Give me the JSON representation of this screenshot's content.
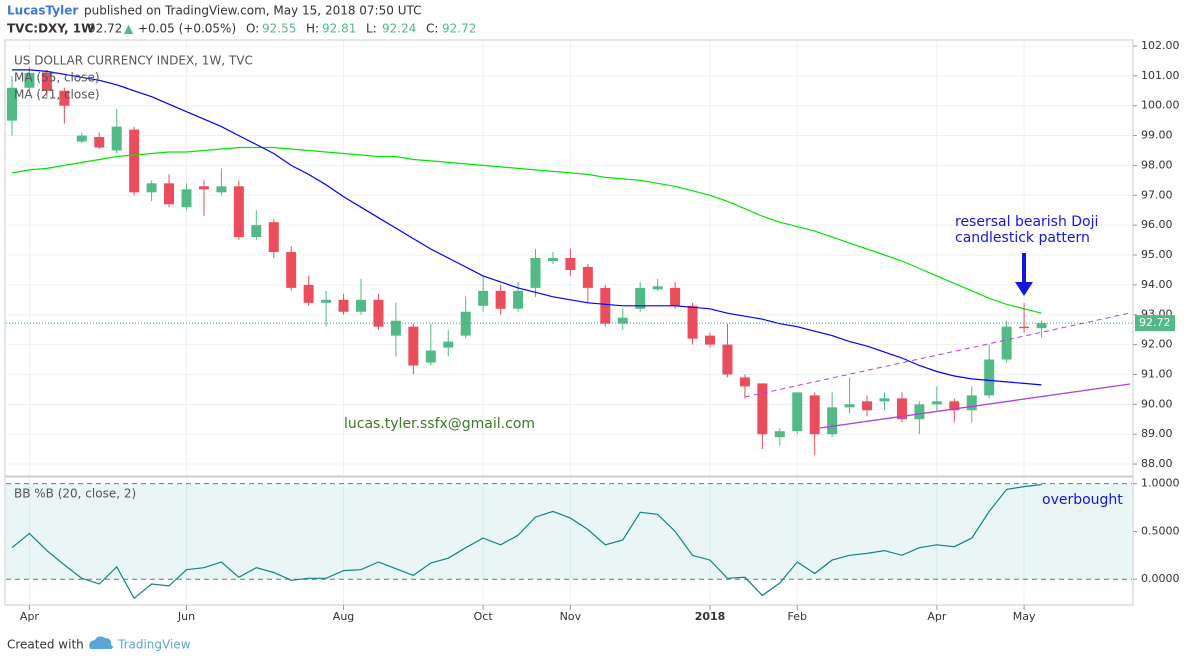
{
  "header": {
    "author": "LucasTyler",
    "published": "published on TradingView.com, May 15, 2018 07:50 UTC",
    "symbol": "TVC:DXY, 1W",
    "change_arrow": "▲",
    "change": "+0.05 (+0.05%)",
    "ohlc_labels": [
      "O:",
      "H:",
      "L:",
      "C:"
    ]
  },
  "chart_data": [
    {
      "type": "candlestick",
      "title": "US DOLLAR CURRENCY INDEX, 1W, TVC",
      "categories": [
        null,
        "Apr",
        null,
        null,
        null,
        null,
        null,
        null,
        null,
        null,
        "Jun",
        null,
        null,
        null,
        null,
        null,
        null,
        null,
        null,
        "Aug",
        null,
        null,
        null,
        null,
        null,
        null,
        null,
        "Oct",
        null,
        null,
        null,
        null,
        "Nov",
        null,
        null,
        null,
        null,
        null,
        null,
        null,
        "2018",
        null,
        null,
        null,
        null,
        "Feb",
        null,
        null,
        null,
        null,
        null,
        null,
        null,
        "Apr",
        null,
        null,
        null,
        null,
        "May",
        null
      ],
      "open": [
        99.5,
        100.6,
        101.1,
        100.5,
        98.8,
        98.95,
        98.5,
        99.2,
        97.1,
        97.4,
        96.6,
        97.3,
        97.1,
        97.3,
        95.6,
        96.1,
        95.1,
        94.0,
        93.4,
        93.5,
        93.1,
        93.5,
        92.3,
        92.6,
        91.4,
        91.9,
        92.3,
        93.3,
        93.8,
        93.2,
        93.9,
        94.8,
        94.9,
        94.6,
        93.9,
        92.7,
        93.2,
        93.85,
        93.9,
        93.3,
        92.3,
        92.0,
        90.9,
        90.7,
        88.9,
        89.1,
        90.3,
        89.0,
        89.9,
        90.1,
        90.1,
        90.2,
        89.5,
        90.0,
        90.1,
        89.8,
        90.3,
        91.5,
        92.6,
        92.55
      ],
      "high": [
        101.0,
        101.3,
        101.2,
        100.6,
        99.1,
        99.1,
        99.9,
        99.3,
        97.5,
        97.7,
        97.4,
        97.5,
        97.9,
        97.5,
        96.5,
        96.2,
        95.3,
        94.3,
        93.8,
        93.7,
        94.2,
        93.7,
        93.4,
        92.7,
        92.7,
        92.5,
        93.6,
        94.3,
        94.0,
        94.1,
        95.2,
        95.1,
        95.2,
        94.7,
        94.0,
        93.2,
        94.1,
        94.2,
        94.1,
        93.4,
        92.4,
        92.7,
        91.0,
        90.7,
        89.2,
        90.4,
        90.4,
        90.4,
        90.9,
        90.3,
        90.4,
        90.4,
        90.1,
        90.6,
        90.2,
        90.6,
        92.0,
        92.8,
        93.4,
        92.81
      ],
      "low": [
        99.0,
        100.4,
        100.3,
        99.4,
        98.75,
        98.55,
        98.4,
        97.0,
        96.8,
        96.6,
        96.5,
        96.3,
        97.0,
        95.5,
        95.5,
        94.9,
        93.8,
        93.3,
        92.6,
        93.0,
        93.0,
        92.5,
        91.6,
        91.0,
        91.3,
        91.6,
        92.2,
        93.1,
        93.0,
        93.1,
        93.6,
        94.7,
        94.3,
        93.4,
        92.6,
        92.5,
        93.1,
        93.8,
        93.2,
        92.0,
        91.9,
        90.9,
        90.2,
        88.5,
        88.6,
        89.0,
        88.3,
        88.9,
        89.7,
        89.6,
        89.8,
        89.4,
        89.0,
        89.8,
        89.4,
        89.4,
        90.2,
        91.4,
        92.4,
        92.24
      ],
      "close": [
        100.6,
        101.1,
        100.5,
        100.0,
        99.0,
        98.6,
        99.3,
        97.1,
        97.4,
        96.7,
        97.2,
        97.2,
        97.3,
        95.6,
        96.0,
        95.1,
        93.9,
        93.4,
        93.5,
        93.1,
        93.5,
        92.6,
        92.8,
        91.3,
        91.8,
        92.1,
        93.1,
        93.8,
        93.2,
        93.8,
        94.9,
        94.9,
        94.5,
        93.9,
        92.7,
        92.9,
        93.9,
        93.95,
        93.3,
        92.2,
        92.0,
        91.0,
        90.6,
        89.0,
        89.1,
        90.4,
        89.0,
        89.9,
        90.0,
        89.8,
        90.2,
        89.5,
        90.0,
        90.1,
        89.8,
        90.3,
        91.5,
        92.6,
        92.55,
        92.72
      ],
      "up_color": "#53b987",
      "down_color": "#eb4d5c",
      "series": [
        {
          "name": "MA (55, close)",
          "color": "#00e600",
          "values": [
            97.75,
            97.85,
            97.9,
            98.0,
            98.1,
            98.2,
            98.3,
            98.35,
            98.4,
            98.45,
            98.45,
            98.5,
            98.55,
            98.6,
            98.6,
            98.6,
            98.55,
            98.5,
            98.45,
            98.4,
            98.35,
            98.3,
            98.3,
            98.2,
            98.15,
            98.1,
            98.05,
            98.0,
            97.95,
            97.9,
            97.85,
            97.8,
            97.75,
            97.7,
            97.6,
            97.55,
            97.5,
            97.4,
            97.3,
            97.15,
            97.0,
            96.8,
            96.55,
            96.3,
            96.1,
            95.95,
            95.8,
            95.6,
            95.4,
            95.2,
            95.0,
            94.8,
            94.55,
            94.3,
            94.05,
            93.8,
            93.55,
            93.35,
            93.2,
            93.05
          ]
        },
        {
          "name": "MA (21, close)",
          "color": "#0000ff",
          "values": [
            101.2,
            101.2,
            101.15,
            101.05,
            100.95,
            100.85,
            100.7,
            100.5,
            100.3,
            100.05,
            99.8,
            99.55,
            99.3,
            99.0,
            98.7,
            98.4,
            98.0,
            97.7,
            97.35,
            96.95,
            96.6,
            96.25,
            95.9,
            95.55,
            95.2,
            94.9,
            94.6,
            94.3,
            94.1,
            93.9,
            93.75,
            93.6,
            93.5,
            93.4,
            93.35,
            93.3,
            93.3,
            93.3,
            93.3,
            93.25,
            93.2,
            93.05,
            92.95,
            92.85,
            92.7,
            92.6,
            92.45,
            92.3,
            92.1,
            91.95,
            91.75,
            91.55,
            91.3,
            91.1,
            90.95,
            90.85,
            90.8,
            90.75,
            90.7,
            90.65
          ]
        }
      ],
      "ylim": [
        87.6,
        102.2
      ],
      "yticks": [
        {
          "value": 88,
          "label": "88.00"
        },
        {
          "value": 89,
          "label": "89.00"
        },
        {
          "value": 90,
          "label": "90.00"
        },
        {
          "value": 91,
          "label": "91.00"
        },
        {
          "value": 92,
          "label": "92.00"
        },
        {
          "value": 93,
          "label": "93.00"
        },
        {
          "value": 94,
          "label": "94.00"
        },
        {
          "value": 95,
          "label": "95.00"
        },
        {
          "value": 96,
          "label": "96.00"
        },
        {
          "value": 97,
          "label": "97.00"
        },
        {
          "value": 98,
          "label": "98.00"
        },
        {
          "value": 99,
          "label": "99.00"
        },
        {
          "value": 100,
          "label": "100.00"
        },
        {
          "value": 101,
          "label": "101.00"
        },
        {
          "value": 102,
          "label": "102.00"
        }
      ],
      "grid": true,
      "watermark": "lucas.tyler.ssfx@gmail.com",
      "annotation": [
        "resersal bearish Doji",
        "candlestick pattern"
      ]
    },
    {
      "type": "line",
      "title": "BB %B (20, close, 2)",
      "color": "#138484",
      "values": [
        0.33,
        0.48,
        0.3,
        0.15,
        0.01,
        -0.05,
        0.13,
        -0.2,
        -0.05,
        -0.07,
        0.1,
        0.12,
        0.18,
        0.02,
        0.12,
        0.07,
        -0.01,
        0.01,
        0.01,
        0.09,
        0.1,
        0.18,
        0.11,
        0.04,
        0.17,
        0.22,
        0.33,
        0.43,
        0.36,
        0.46,
        0.65,
        0.71,
        0.64,
        0.52,
        0.36,
        0.41,
        0.7,
        0.68,
        0.5,
        0.25,
        0.2,
        0.01,
        0.02,
        -0.17,
        -0.04,
        0.18,
        0.06,
        0.2,
        0.25,
        0.27,
        0.3,
        0.25,
        0.33,
        0.36,
        0.34,
        0.43,
        0.71,
        0.94,
        0.97,
        0.99
      ],
      "ylim": [
        -0.27,
        1.07
      ],
      "yticks": [
        {
          "value": 0,
          "label": "0.0000"
        },
        {
          "value": 0.5,
          "label": "0.5000"
        },
        {
          "value": 1,
          "label": "1.0000"
        }
      ],
      "annotation": "overbought"
    }
  ],
  "footer": {
    "created": "Created with",
    "brand": "TradingView"
  }
}
